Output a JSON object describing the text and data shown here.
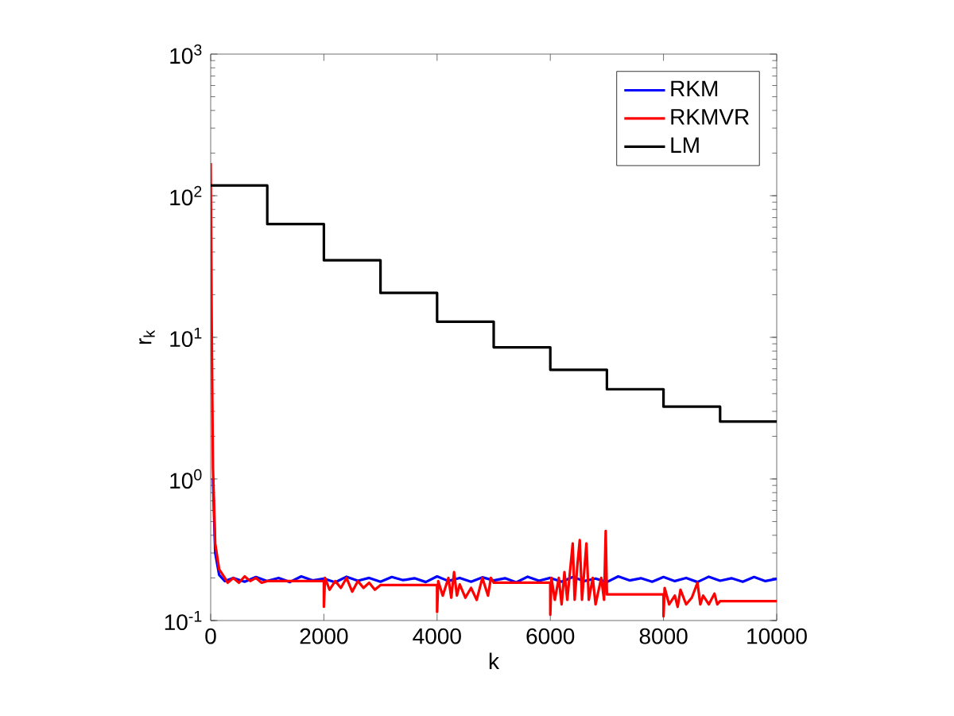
{
  "chart_data": {
    "type": "line",
    "xlabel": "k",
    "ylabel": "r$_{k}$",
    "log": "y",
    "legend": "top right",
    "grid": false,
    "xlim": [
      0,
      10000
    ],
    "ylim": [
      0.1,
      1000
    ],
    "xticks": [
      0,
      2000,
      4000,
      6000,
      8000,
      10000
    ],
    "yticks": [
      {
        "value": 0.1,
        "label": "10$^{-1}$"
      },
      {
        "value": 1,
        "label": "10$^{0}$"
      },
      {
        "value": 10,
        "label": "10$^{1}$"
      },
      {
        "value": 100,
        "label": "10$^{2}$"
      },
      {
        "value": 1000,
        "label": "10$^{3}$"
      }
    ],
    "series": [
      {
        "name": "RKM",
        "color": "#0000ff",
        "x": [
          40,
          80,
          150,
          250,
          400,
          600,
          800,
          1000,
          1200,
          1400,
          1600,
          1800,
          2000,
          2200,
          2400,
          2600,
          2800,
          3000,
          3200,
          3400,
          3600,
          3800,
          4000,
          4200,
          4400,
          4600,
          4800,
          5000,
          5200,
          5400,
          5600,
          5800,
          6000,
          6200,
          6400,
          6600,
          6800,
          7000,
          7200,
          7400,
          7600,
          7800,
          8000,
          8200,
          8400,
          8600,
          8800,
          9000,
          9200,
          9400,
          9600,
          9800,
          10000
        ],
        "values": [
          1,
          0.3,
          0.21,
          0.19,
          0.2,
          0.188,
          0.203,
          0.19,
          0.2,
          0.187,
          0.205,
          0.192,
          0.198,
          0.186,
          0.204,
          0.191,
          0.2,
          0.188,
          0.203,
          0.193,
          0.199,
          0.187,
          0.205,
          0.19,
          0.2,
          0.188,
          0.202,
          0.192,
          0.199,
          0.186,
          0.204,
          0.191,
          0.2,
          0.188,
          0.203,
          0.19,
          0.198,
          0.187,
          0.205,
          0.192,
          0.199,
          0.188,
          0.203,
          0.19,
          0.2,
          0.187,
          0.204,
          0.191,
          0.199,
          0.188,
          0.203,
          0.19,
          0.197
        ]
      },
      {
        "name": "RKMVR",
        "color": "#ff0000",
        "x": [
          0,
          20,
          40,
          80,
          150,
          250,
          300,
          400,
          500,
          600,
          700,
          800,
          900,
          1000,
          1999,
          2000,
          2020,
          2100,
          2200,
          2300,
          2400,
          2500,
          2600,
          2700,
          2800,
          2900,
          3000,
          3999,
          4000,
          4020,
          4100,
          4200,
          4250,
          4300,
          4350,
          4400,
          4500,
          4600,
          4700,
          4800,
          4900,
          4950,
          5000,
          5999,
          6000,
          6020,
          6080,
          6150,
          6200,
          6250,
          6300,
          6396,
          6430,
          6480,
          6520,
          6560,
          6638,
          6680,
          6750,
          6800,
          6900,
          6950,
          6979,
          7000,
          7999,
          8000,
          8020,
          8100,
          8200,
          8250,
          8300,
          8400,
          8500,
          8600,
          8650,
          8700,
          8800,
          8900,
          8950,
          9000,
          10000
        ],
        "values": [
          170,
          10,
          1.2,
          0.35,
          0.23,
          0.2,
          0.185,
          0.2,
          0.185,
          0.205,
          0.19,
          0.2,
          0.185,
          0.19,
          0.19,
          0.125,
          0.2,
          0.165,
          0.19,
          0.17,
          0.2,
          0.16,
          0.19,
          0.17,
          0.185,
          0.165,
          0.178,
          0.178,
          0.115,
          0.19,
          0.15,
          0.2,
          0.145,
          0.22,
          0.15,
          0.18,
          0.145,
          0.17,
          0.14,
          0.2,
          0.15,
          0.2,
          0.185,
          0.185,
          0.11,
          0.2,
          0.14,
          0.2,
          0.13,
          0.22,
          0.14,
          0.35,
          0.14,
          0.25,
          0.37,
          0.14,
          0.35,
          0.14,
          0.2,
          0.13,
          0.2,
          0.14,
          0.43,
          0.153,
          0.153,
          0.107,
          0.17,
          0.13,
          0.15,
          0.125,
          0.165,
          0.13,
          0.145,
          0.185,
          0.13,
          0.15,
          0.13,
          0.155,
          0.13,
          0.137,
          0.137
        ]
      },
      {
        "name": "LM",
        "color": "#000000",
        "type": "step",
        "x": [
          0,
          1000,
          2000,
          3000,
          4000,
          5000,
          6000,
          7000,
          8000,
          9000,
          10000
        ],
        "values": [
          118,
          63,
          35,
          20.6,
          12.9,
          8.5,
          5.9,
          4.3,
          3.24,
          2.54,
          2.54
        ]
      }
    ]
  }
}
